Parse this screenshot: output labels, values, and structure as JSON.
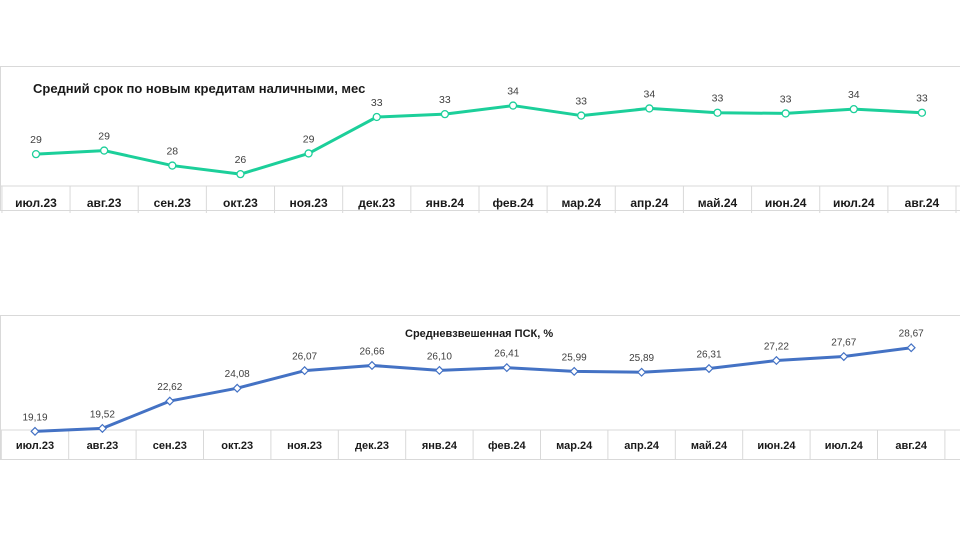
{
  "chart_data": [
    {
      "type": "line",
      "title": "Средний срок по новым  кредитам наличными, мес",
      "categories": [
        "июл.23",
        "авг.23",
        "сен.23",
        "окт.23",
        "ноя.23",
        "дек.23",
        "янв.24",
        "фев.24",
        "мар.24",
        "апр.24",
        "май.24",
        "июн.24",
        "июл.24",
        "авг.24"
      ],
      "values": [
        29,
        29,
        28,
        26,
        29,
        33,
        33,
        34,
        33,
        34,
        33,
        33,
        34,
        33
      ],
      "labels": [
        "29",
        "29",
        "28",
        "26",
        "29",
        "33",
        "33",
        "34",
        "33",
        "34",
        "33",
        "33",
        "34",
        "33"
      ],
      "plot_values": [
        29.3,
        29.55,
        28.5,
        27.9,
        29.35,
        31.9,
        32.1,
        32.7,
        32.0,
        32.5,
        32.2,
        32.15,
        32.45,
        32.2
      ],
      "ylim": [
        27.0,
        34.0
      ],
      "color": "#1ccf9a",
      "marker": "circle",
      "grid": false,
      "legend": "none"
    },
    {
      "type": "line",
      "title": "Средневзвешенная  ПСК, %",
      "categories": [
        "июл.23",
        "авг.23",
        "сен.23",
        "окт.23",
        "ноя.23",
        "дек.23",
        "янв.24",
        "фев.24",
        "мар.24",
        "апр.24",
        "май.24",
        "июн.24",
        "июл.24",
        "авг.24"
      ],
      "values": [
        19.19,
        19.52,
        22.62,
        24.08,
        26.07,
        26.66,
        26.1,
        26.41,
        25.99,
        25.89,
        26.31,
        27.22,
        27.67,
        28.67
      ],
      "labels": [
        "19,19",
        "19,52",
        "22,62",
        "24,08",
        "26,07",
        "26,66",
        "26,10",
        "26,41",
        "25,99",
        "25,89",
        "26,31",
        "27,22",
        "27,67",
        "28,67"
      ],
      "ylim": [
        19.0,
        30.0
      ],
      "color": "#4472c4",
      "marker": "diamond",
      "grid": false,
      "legend": "none"
    }
  ]
}
